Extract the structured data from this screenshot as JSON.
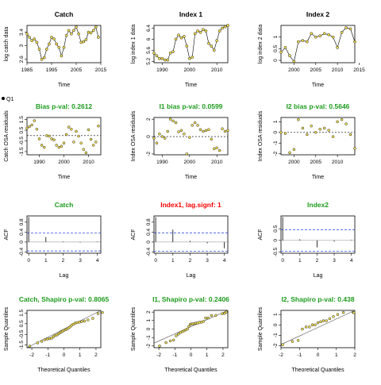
{
  "legend": {
    "label": "Q1"
  },
  "chart_data": [
    {
      "type": "line",
      "panel": "catch-data",
      "title": "Catch",
      "title_color": "#000000",
      "xlabel": "Time",
      "ylabel": "log catch data",
      "xlim": [
        1985,
        2015
      ],
      "ylim": [
        2.5,
        3.6
      ],
      "xticks": [
        1985,
        1995,
        2005,
        2015
      ],
      "yticks": [
        2.6,
        3.0,
        3.4
      ],
      "x": [
        1985,
        1986,
        1987,
        1988,
        1989,
        1990,
        1991,
        1992,
        1993,
        1994,
        1995,
        1996,
        1997,
        1998,
        1999,
        2000,
        2001,
        2002,
        2003,
        2004,
        2005,
        2006,
        2007,
        2008,
        2009,
        2010,
        2011,
        2012,
        2013,
        2014
      ],
      "y": [
        3.35,
        3.25,
        3.15,
        3.2,
        3.1,
        2.9,
        2.6,
        2.65,
        2.9,
        3.05,
        3.25,
        3.2,
        3.05,
        2.95,
        2.7,
        2.95,
        3.3,
        3.45,
        3.35,
        3.45,
        3.55,
        3.35,
        3.1,
        3.12,
        3.18,
        3.4,
        3.38,
        3.45,
        3.55,
        3.25
      ]
    },
    {
      "type": "line",
      "panel": "index1-data",
      "title": "Index 1",
      "title_color": "#000000",
      "xlabel": "Time",
      "ylabel": "log index 1 data",
      "xlim": [
        1987,
        2014
      ],
      "ylim": [
        5.15,
        6.5
      ],
      "xticks": [
        1990,
        2000,
        2010
      ],
      "yticks": [
        5.2,
        5.6,
        6.0,
        6.4
      ],
      "x": [
        1987,
        1988,
        1989,
        1990,
        1991,
        1992,
        1993,
        1994,
        1995,
        1996,
        1997,
        1998,
        1999,
        2000,
        2001,
        2002,
        2003,
        2004,
        2005,
        2006,
        2007,
        2008,
        2009,
        2010,
        2011,
        2012,
        2013,
        2014
      ],
      "y": [
        5.5,
        5.4,
        5.3,
        5.3,
        5.25,
        5.25,
        5.5,
        5.55,
        6.0,
        6.15,
        6.05,
        6.1,
        5.75,
        5.3,
        5.35,
        6.2,
        6.3,
        6.25,
        6.35,
        6.3,
        5.85,
        5.75,
        5.6,
        5.95,
        6.3,
        6.4,
        6.45,
        6.5
      ]
    },
    {
      "type": "line",
      "panel": "index2-data",
      "title": "Index 2",
      "title_color": "#000000",
      "xlabel": "Time",
      "ylabel": "log index 2 data",
      "xlim": [
        1997,
        2014
      ],
      "ylim": [
        -0.1,
        1.5
      ],
      "xticks": [
        2000,
        2005,
        2010,
        2015
      ],
      "yticks": [
        0.0,
        0.5,
        1.0
      ],
      "x": [
        1997,
        1998,
        1999,
        2000,
        2001,
        2002,
        2003,
        2004,
        2005,
        2006,
        2007,
        2008,
        2009,
        2010,
        2011,
        2012,
        2013,
        2014
      ],
      "y": [
        0.35,
        0.55,
        0.2,
        -0.05,
        0.8,
        0.85,
        0.8,
        1.15,
        1.0,
        1.05,
        1.15,
        1.1,
        1.0,
        0.55,
        1.2,
        1.4,
        1.35,
        0.8
      ]
    },
    {
      "type": "scatter",
      "panel": "catch-osa",
      "title": "Bias p-val: 0.2612",
      "title_color": "#1E9B1E",
      "xlabel": "Time",
      "ylabel": "Catch OSA residuals",
      "xlim": [
        1985,
        2015
      ],
      "ylim": [
        -1.8,
        1.7
      ],
      "xticks": [
        1990,
        2000,
        2010
      ],
      "yticks": [
        -1.5,
        -0.5,
        0.5,
        1.5
      ],
      "x": [
        1985,
        1986,
        1987,
        1988,
        1989,
        1990,
        1991,
        1992,
        1993,
        1994,
        1995,
        1996,
        1997,
        1998,
        1999,
        2000,
        2001,
        2002,
        2003,
        2004,
        2005,
        2006,
        2007,
        2008,
        2009,
        2010,
        2011,
        2012,
        2013,
        2014
      ],
      "y": [
        0.7,
        0.85,
        1.0,
        1.4,
        0.6,
        -0.3,
        -0.9,
        -1.1,
        0.0,
        -0.05,
        -0.3,
        -0.4,
        -0.9,
        -1.1,
        -1.0,
        -0.7,
        0.1,
        0.8,
        0.6,
        -0.6,
        0.4,
        -0.05,
        -0.7,
        -1.3,
        -1.6,
        0.55,
        -0.35,
        -0.9,
        -0.6,
        0.9
      ]
    },
    {
      "type": "scatter",
      "panel": "index1-osa",
      "title": "I1 bias p-val: 0.0599",
      "title_color": "#1E9B1E",
      "xlabel": "Time",
      "ylabel": "Index OSA residuals",
      "xlim": [
        1987,
        2014
      ],
      "ylim": [
        -2.1,
        2.2
      ],
      "xticks": [
        1990,
        2000,
        2010
      ],
      "yticks": [
        -2,
        0,
        2
      ],
      "x": [
        1987,
        1988,
        1989,
        1990,
        1991,
        1992,
        1993,
        1994,
        1995,
        1996,
        1997,
        1998,
        1999,
        2000,
        2001,
        2002,
        2003,
        2004,
        2005,
        2006,
        2007,
        2008,
        2009,
        2010,
        2011,
        2012,
        2013,
        2014
      ],
      "y": [
        -0.2,
        -0.75,
        0.3,
        0.0,
        -0.2,
        0.6,
        2.0,
        1.8,
        1.6,
        0.55,
        0.7,
        0.3,
        -2.0,
        -0.1,
        1.3,
        1.6,
        1.3,
        0.8,
        0.6,
        0.7,
        0.8,
        -0.3,
        -1.4,
        -1.3,
        -1.6,
        0.9,
        0.6,
        0.7
      ]
    },
    {
      "type": "scatter",
      "panel": "index2-osa",
      "title": "I2 bias p-val: 0.5646",
      "title_color": "#1E9B1E",
      "xlabel": "Time",
      "ylabel": "Index OSA residuals",
      "xlim": [
        1997,
        2014
      ],
      "ylim": [
        -2.1,
        1.4
      ],
      "xticks": [
        2000,
        2005,
        2010
      ],
      "yticks": [
        -2,
        -1,
        0,
        1
      ],
      "x": [
        1997,
        1998,
        1999,
        2000,
        2001,
        2002,
        2003,
        2004,
        2005,
        2006,
        2007,
        2008,
        2009,
        2010,
        2011,
        2012,
        2013,
        2014
      ],
      "y": [
        0.0,
        -0.1,
        -1.9,
        -1.6,
        1.2,
        0.4,
        -0.2,
        0.6,
        0.0,
        0.3,
        0.4,
        0.2,
        -0.4,
        1.0,
        1.2,
        0.8,
        -0.2,
        -1.5
      ]
    },
    {
      "type": "bar",
      "panel": "catch-acf",
      "title": "Catch",
      "title_color": "#1E9B1E",
      "xlabel": "Lag",
      "ylabel": "ACF",
      "xlim": [
        -0.1,
        4.2
      ],
      "ylim": [
        -0.45,
        1.05
      ],
      "xticks": [
        0,
        1,
        2,
        3,
        4
      ],
      "yticks": [
        -0.4,
        0.0,
        0.4,
        0.8
      ],
      "lags": [
        0,
        1,
        2,
        3,
        4
      ],
      "values": [
        1.0,
        0.2,
        0.02,
        -0.02,
        0.02
      ],
      "conf": 0.36
    },
    {
      "type": "bar",
      "panel": "index1-acf",
      "title": "Index1, lag.signf: 1",
      "title_color": "#FF0000",
      "xlabel": "Lag",
      "ylabel": "ACF",
      "xlim": [
        -0.1,
        4.2
      ],
      "ylim": [
        -0.45,
        1.05
      ],
      "xticks": [
        0,
        1,
        2,
        3,
        4
      ],
      "yticks": [
        -0.4,
        0.0,
        0.4,
        0.8
      ],
      "lags": [
        0,
        1,
        2,
        3,
        4
      ],
      "values": [
        1.0,
        0.5,
        0.05,
        -0.05,
        -0.25
      ],
      "conf": 0.37
    },
    {
      "type": "bar",
      "panel": "index2-acf",
      "title": "Index2",
      "title_color": "#1E9B1E",
      "xlabel": "Lag",
      "ylabel": "ACF",
      "xlim": [
        -0.1,
        4.2
      ],
      "ylim": [
        -0.55,
        1.05
      ],
      "xticks": [
        0,
        1,
        2,
        3,
        4
      ],
      "yticks": [
        -0.5,
        0.0,
        0.5
      ],
      "lags": [
        0,
        1,
        2,
        3,
        4
      ],
      "values": [
        1.0,
        0.05,
        -0.3,
        -0.05,
        0.02
      ],
      "conf": 0.46
    },
    {
      "type": "scatter",
      "panel": "catch-qq",
      "title": "Catch, Shapiro p-val: 0.8065",
      "title_color": "#1E9B1E",
      "xlabel": "Theoretical Quantiles",
      "ylabel": "Sample Quantiles",
      "xlim": [
        -2.3,
        2.3
      ],
      "ylim": [
        -1.75,
        1.75
      ],
      "xticks": [
        -2,
        -1,
        0,
        1,
        2
      ],
      "yticks": [
        -1.5,
        -0.5,
        0.5,
        1.5
      ],
      "x": [
        -2.13,
        -1.64,
        -1.38,
        -1.19,
        -1.03,
        -0.89,
        -0.76,
        -0.64,
        -0.53,
        -0.43,
        -0.33,
        -0.24,
        -0.15,
        -0.07,
        0.02,
        0.11,
        0.19,
        0.28,
        0.38,
        0.48,
        0.58,
        0.7,
        0.82,
        0.96,
        1.11,
        1.28,
        1.5,
        1.8,
        2.13,
        2.4
      ],
      "y": [
        -1.6,
        -1.3,
        -1.15,
        -1.0,
        -0.95,
        -0.9,
        -0.85,
        -0.7,
        -0.6,
        -0.55,
        -0.45,
        -0.35,
        -0.25,
        -0.2,
        -0.1,
        -0.05,
        0.0,
        0.1,
        0.2,
        0.35,
        0.45,
        0.55,
        0.6,
        0.65,
        0.7,
        0.75,
        0.85,
        1.0,
        1.45,
        1.55
      ],
      "line": {
        "intercept": -0.1,
        "slope": 0.8
      }
    },
    {
      "type": "scatter",
      "panel": "index1-qq",
      "title": "I1, Shapiro p-val: 0.2406",
      "title_color": "#1E9B1E",
      "xlabel": "Theoretical Quantiles",
      "ylabel": "Sample Quantiles",
      "xlim": [
        -2.3,
        2.3
      ],
      "ylim": [
        -2.2,
        2.2
      ],
      "xticks": [
        -2,
        -1,
        0,
        1,
        2
      ],
      "yticks": [
        -2,
        -1,
        0,
        1,
        2
      ],
      "x": [
        -1.95,
        -1.55,
        -1.28,
        -1.08,
        -0.92,
        -0.78,
        -0.65,
        -0.53,
        -0.42,
        -0.32,
        -0.22,
        -0.13,
        -0.04,
        0.04,
        0.13,
        0.22,
        0.32,
        0.42,
        0.53,
        0.65,
        0.78,
        0.92,
        1.08,
        1.28,
        1.55,
        1.95,
        2.1,
        2.2
      ],
      "y": [
        -2.0,
        -1.6,
        -1.4,
        -1.3,
        -0.8,
        -0.6,
        -0.4,
        -0.3,
        -0.2,
        -0.1,
        0.0,
        0.3,
        0.55,
        0.6,
        0.6,
        0.65,
        0.7,
        0.7,
        0.8,
        0.8,
        0.9,
        1.3,
        1.3,
        1.6,
        1.6,
        1.8,
        1.85,
        2.0
      ],
      "line": {
        "intercept": 0.3,
        "slope": 0.85
      }
    },
    {
      "type": "scatter",
      "panel": "index2-qq",
      "title": "I2, Shapiro p-val: 0.438",
      "title_color": "#1E9B1E",
      "xlabel": "Theoretical Quantiles",
      "ylabel": "Sample Quantiles",
      "xlim": [
        -2.0,
        2.0
      ],
      "ylim": [
        -2.2,
        1.4
      ],
      "xticks": [
        -2,
        -1,
        0,
        1,
        2
      ],
      "yticks": [
        -2,
        -1,
        0,
        1
      ],
      "x": [
        -1.91,
        -1.38,
        -1.07,
        -0.84,
        -0.64,
        -0.46,
        -0.3,
        -0.15,
        0.0,
        0.15,
        0.3,
        0.46,
        0.64,
        0.84,
        1.07,
        1.38,
        1.91,
        1.95
      ],
      "y": [
        -1.9,
        -1.6,
        -1.5,
        -0.4,
        -0.2,
        -0.2,
        0.0,
        0.0,
        0.2,
        0.3,
        0.4,
        0.4,
        0.6,
        0.8,
        1.0,
        1.2,
        1.2,
        1.2
      ],
      "line": {
        "intercept": 0.0,
        "slope": 0.95
      }
    }
  ]
}
